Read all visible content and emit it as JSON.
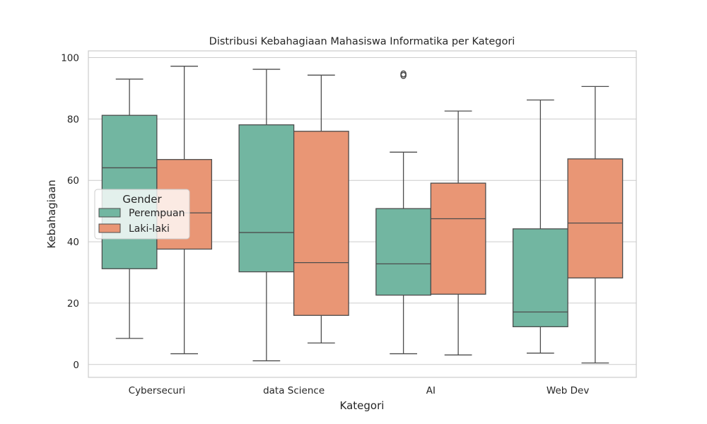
{
  "chart_data": {
    "type": "boxplot",
    "title": "Distribusi Kebahagiaan Mahasiswa Informatika per Kategori",
    "xlabel": "Kategori",
    "ylabel": "Kebahagiaan",
    "ylim": [
      -4.2,
      102.2
    ],
    "yticks": [
      0,
      20,
      40,
      60,
      80,
      100
    ],
    "grid": true,
    "categories": [
      "Cybersecuri",
      "data Science",
      "AI",
      "Web Dev"
    ],
    "legend": {
      "title": "Gender",
      "placement": "center-left"
    },
    "series": [
      {
        "name": "Perempuan",
        "color": "#72b6a1",
        "boxes": [
          {
            "whisker_low": 8.5,
            "q1": 31.2,
            "median": 64.1,
            "q3": 81.2,
            "whisker_high": 93.0,
            "outliers": []
          },
          {
            "whisker_low": 1.2,
            "q1": 30.2,
            "median": 43.0,
            "q3": 78.1,
            "whisker_high": 96.2,
            "outliers": []
          },
          {
            "whisker_low": 3.5,
            "q1": 22.6,
            "median": 32.8,
            "q3": 50.8,
            "whisker_high": 69.2,
            "outliers": [
              94.2,
              94.7
            ]
          },
          {
            "whisker_low": 3.7,
            "q1": 12.3,
            "median": 17.1,
            "q3": 44.2,
            "whisker_high": 86.2,
            "outliers": []
          }
        ]
      },
      {
        "name": "Laki-laki",
        "color": "#e99675",
        "boxes": [
          {
            "whisker_low": 3.5,
            "q1": 37.6,
            "median": 49.4,
            "q3": 66.8,
            "whisker_high": 97.2,
            "outliers": []
          },
          {
            "whisker_low": 7.0,
            "q1": 16.0,
            "median": 33.2,
            "q3": 76.0,
            "whisker_high": 94.3,
            "outliers": []
          },
          {
            "whisker_low": 3.1,
            "q1": 22.9,
            "median": 47.5,
            "q3": 59.1,
            "whisker_high": 82.6,
            "outliers": []
          },
          {
            "whisker_low": 0.5,
            "q1": 28.2,
            "median": 46.1,
            "q3": 67.0,
            "whisker_high": 90.6,
            "outliers": []
          }
        ]
      }
    ]
  }
}
